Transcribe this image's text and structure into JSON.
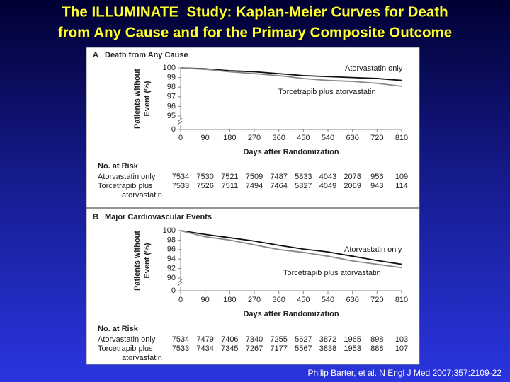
{
  "title": [
    "The ILLUMINATE  Study: Kaplan-Meier Curves for Death",
    "from Any Cause and for the Primary Composite Outcome"
  ],
  "citation": "Philip Barter, et al. N Engl J Med 2007;357:2109-22",
  "chart_data": [
    {
      "type": "line",
      "panel": "A",
      "title": "Death from Any Cause",
      "y_label": [
        "Patients without",
        "Event (%)"
      ],
      "x_label": "Days after Randomization",
      "x": [
        0,
        90,
        180,
        270,
        360,
        450,
        540,
        630,
        720,
        810
      ],
      "xlim": [
        0,
        810
      ],
      "xticks": [
        0,
        90,
        180,
        270,
        360,
        450,
        540,
        630,
        720,
        810
      ],
      "ylim": [
        0,
        100
      ],
      "y_break": [
        0,
        95
      ],
      "yticks": [
        0,
        95,
        96,
        97,
        98,
        99,
        100
      ],
      "series": [
        {
          "name": "Atorvastatin only",
          "color": "#111111",
          "values": [
            100,
            99.9,
            99.7,
            99.6,
            99.4,
            99.2,
            99.1,
            99.0,
            98.9,
            98.7
          ]
        },
        {
          "name": "Torcetrapib plus atorvastatin",
          "color": "#8a8a8a",
          "values": [
            100,
            99.85,
            99.6,
            99.4,
            99.2,
            98.9,
            98.7,
            98.6,
            98.4,
            98.1
          ]
        }
      ],
      "risk_table": {
        "title": "No. at Risk",
        "rows": [
          {
            "label": [
              "Atorvastatin only"
            ],
            "values": [
              7534,
              7530,
              7521,
              7509,
              7487,
              5833,
              4043,
              2078,
              956,
              109
            ]
          },
          {
            "label": [
              "Torcetrapib plus",
              "atorvastatin"
            ],
            "values": [
              7533,
              7526,
              7511,
              7494,
              7464,
              5827,
              4049,
              2069,
              943,
              114
            ]
          }
        ]
      }
    },
    {
      "type": "line",
      "panel": "B",
      "title": "Major Cardiovascular Events",
      "y_label": [
        "Patients without",
        "Event (%)"
      ],
      "x_label": "Days after Randomization",
      "x": [
        0,
        90,
        180,
        270,
        360,
        450,
        540,
        630,
        720,
        810
      ],
      "xlim": [
        0,
        810
      ],
      "xticks": [
        0,
        90,
        180,
        270,
        360,
        450,
        540,
        630,
        720,
        810
      ],
      "ylim": [
        0,
        100
      ],
      "y_break": [
        0,
        90
      ],
      "yticks": [
        0,
        90,
        92,
        94,
        96,
        98,
        100
      ],
      "series": [
        {
          "name": "Atorvastatin only",
          "color": "#111111",
          "values": [
            100,
            99.2,
            98.5,
            97.8,
            96.9,
            96.1,
            95.5,
            94.6,
            93.7,
            92.9
          ]
        },
        {
          "name": "Torcetrapib plus atorvastatin",
          "color": "#8a8a8a",
          "values": [
            100,
            98.7,
            98.0,
            97.0,
            96.0,
            95.4,
            94.6,
            93.6,
            92.9,
            92.2
          ]
        }
      ],
      "risk_table": {
        "title": "No. at Risk",
        "rows": [
          {
            "label": [
              "Atorvastatin only"
            ],
            "values": [
              7534,
              7479,
              7406,
              7340,
              7255,
              5627,
              3872,
              1965,
              898,
              103
            ]
          },
          {
            "label": [
              "Torcetrapib plus",
              "atorvastatin"
            ],
            "values": [
              7533,
              7434,
              7345,
              7267,
              7177,
              5567,
              3838,
              1953,
              888,
              107
            ]
          }
        ]
      }
    }
  ]
}
